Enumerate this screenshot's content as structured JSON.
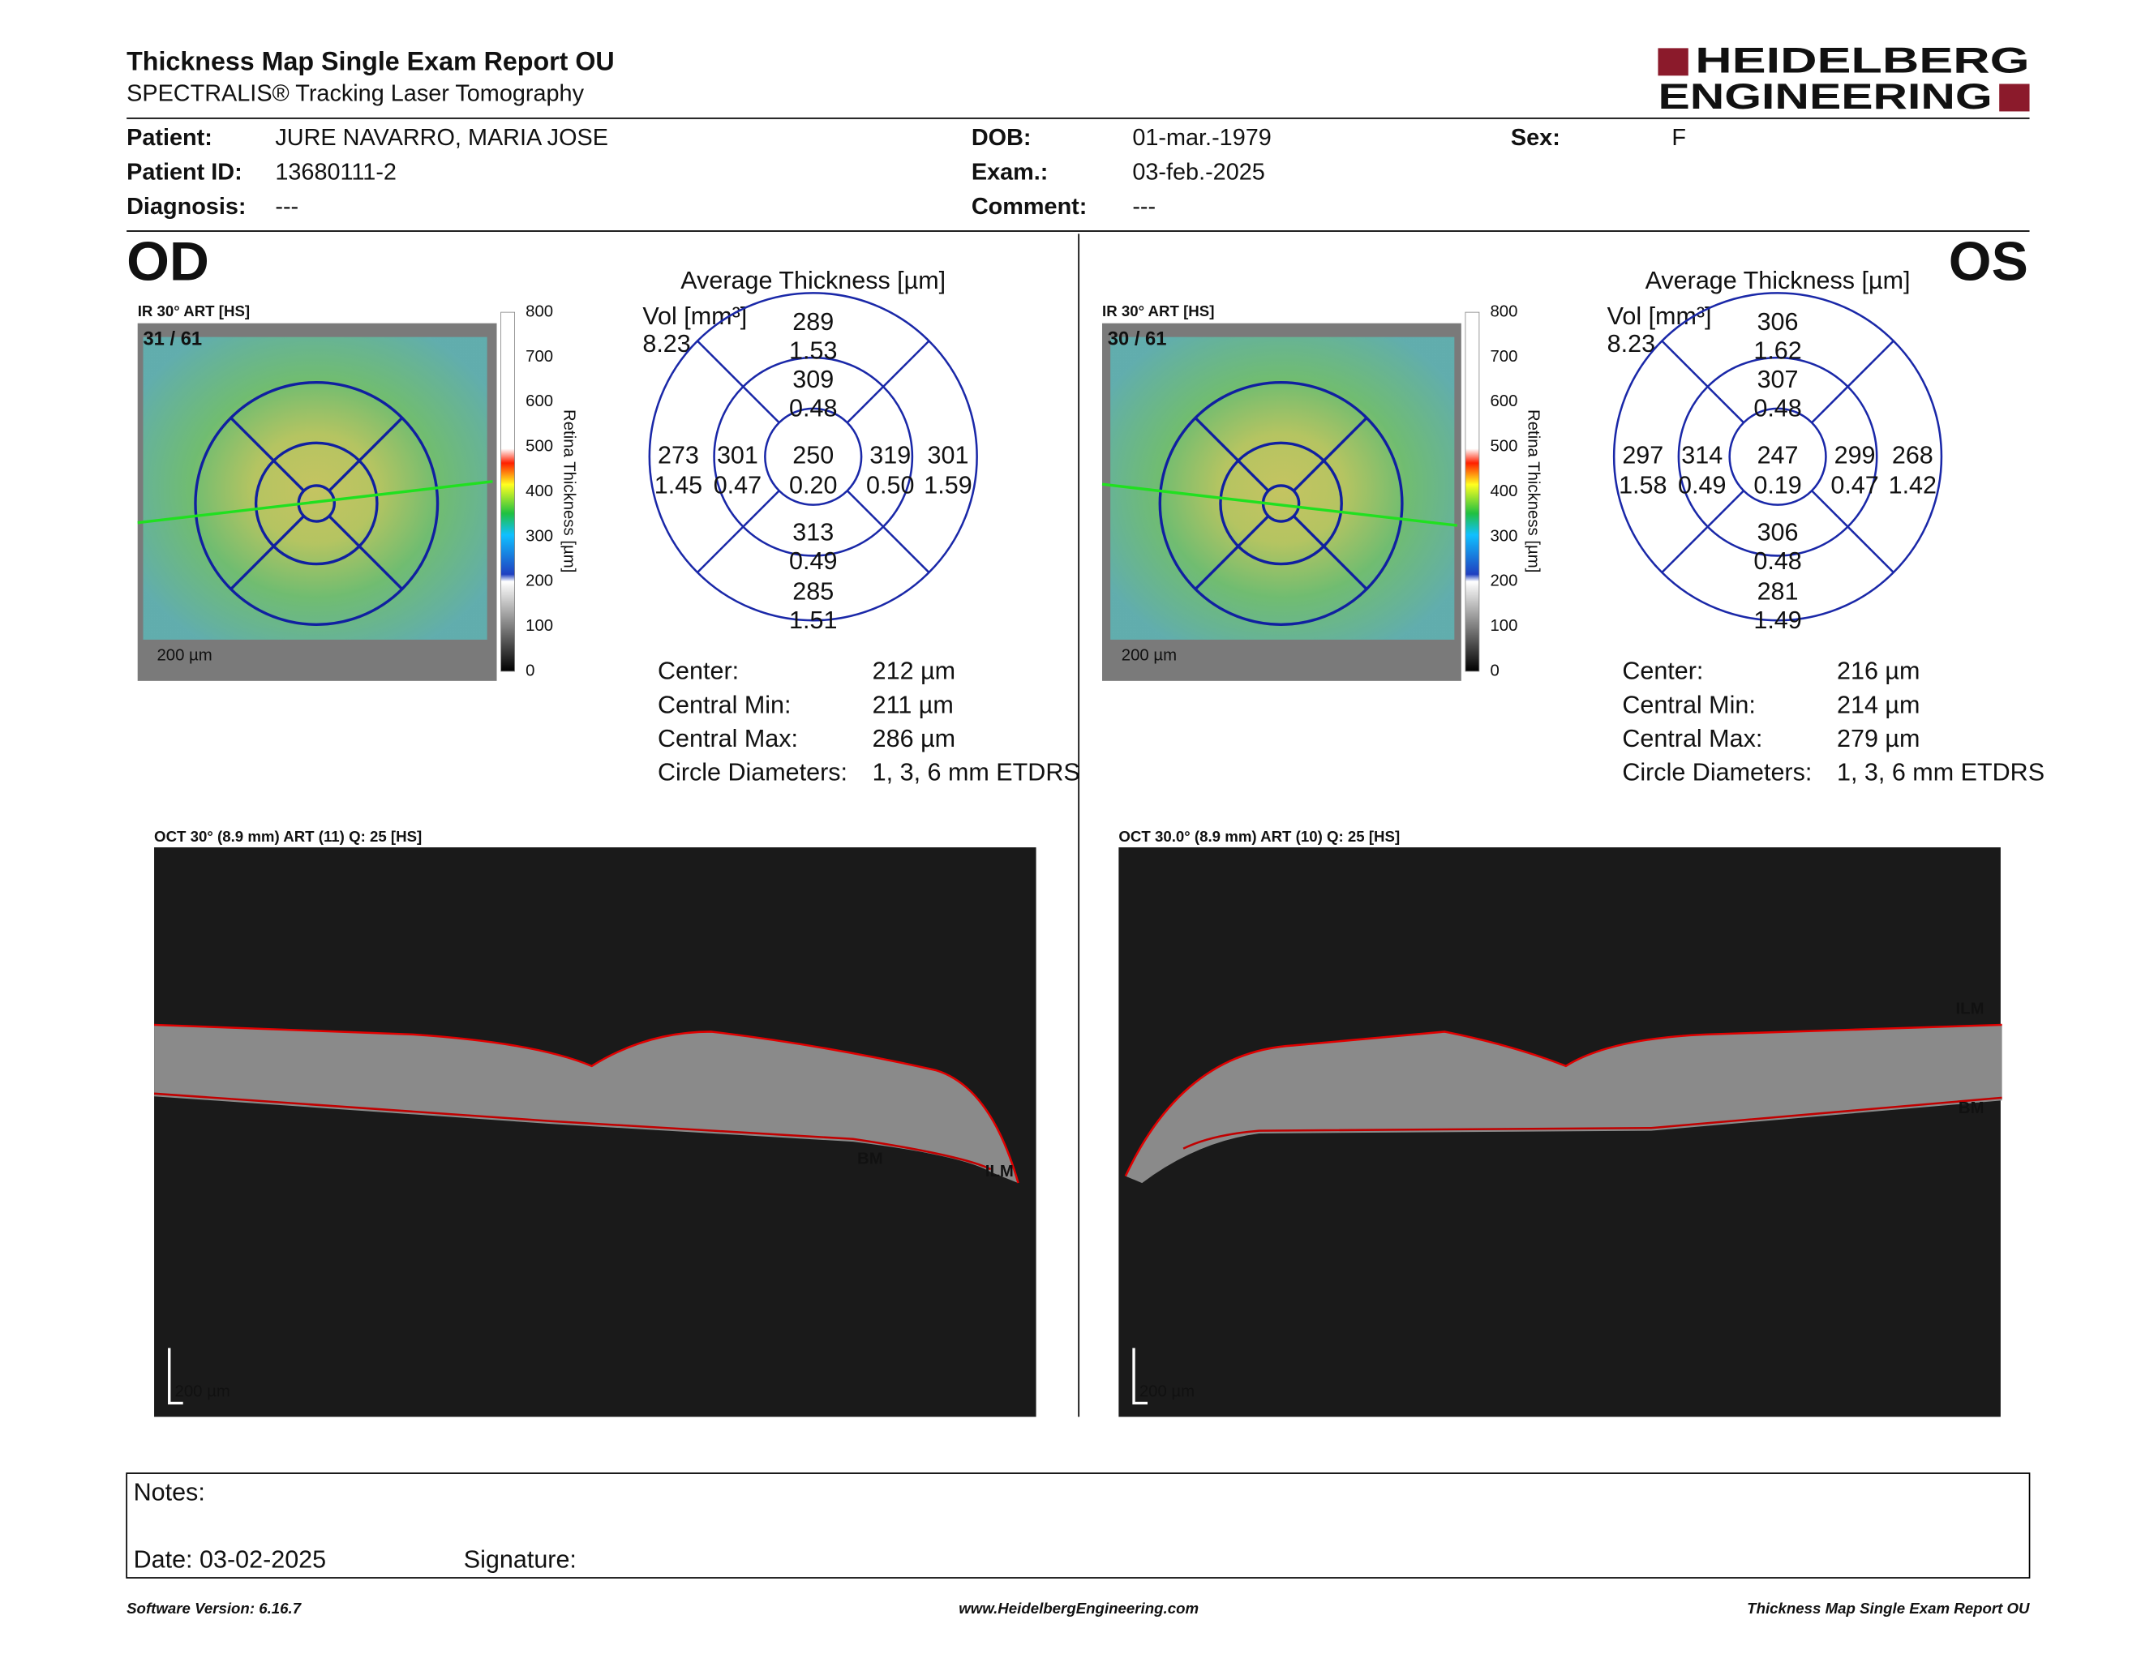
{
  "header": {
    "title": "Thickness Map Single Exam Report OU",
    "subtitle": "SPECTRALIS® Tracking Laser Tomography",
    "logo": [
      "HEIDELBERG",
      "ENGINEERING"
    ]
  },
  "patient": [
    [
      {
        "label": "Patient:",
        "value": "JURE NAVARRO, MARIA JOSE"
      },
      {
        "label": "DOB:",
        "value": "01-mar.-1979"
      },
      {
        "label": "Sex:",
        "value": "F"
      }
    ],
    [
      {
        "label": "Patient ID:",
        "value": "13680111-2"
      },
      {
        "label": "Exam.:",
        "value": "03-feb.-2025"
      }
    ],
    [
      {
        "label": "Diagnosis:",
        "value": "---"
      },
      {
        "label": "Comment:",
        "value": "---"
      }
    ]
  ],
  "eyes": [
    {
      "label": "OD",
      "ir_title": "IR 30° ART [HS]",
      "frame": "31 / 61",
      "scale_bar": "200 µm",
      "colorbar": {
        "title": "Retina  Thickness [µm]",
        "ticks": [
          "800",
          "700",
          "600",
          "500",
          "400",
          "300",
          "200",
          "100",
          "0"
        ]
      },
      "grid": {
        "title": "Average Thickness [µm]",
        "vol_label": "Vol [mm³]",
        "vol": "8.23",
        "sectors": {
          "outer_top": [
            "289",
            "1.53"
          ],
          "inner_top": [
            "309",
            "0.48"
          ],
          "outer_left": [
            "273",
            "1.45"
          ],
          "inner_left": [
            "301",
            "0.47"
          ],
          "center": [
            "250",
            "0.20"
          ],
          "inner_right": [
            "319",
            "0.50"
          ],
          "outer_right": [
            "301",
            "1.59"
          ],
          "inner_bottom": [
            "313",
            "0.49"
          ],
          "outer_bottom": [
            "285",
            "1.51"
          ]
        }
      },
      "stats": [
        [
          "Center:",
          "212 µm"
        ],
        [
          "Central Min:",
          "211 µm"
        ],
        [
          "Central Max:",
          "286 µm"
        ],
        [
          "Circle Diameters:",
          "1, 3, 6 mm ETDRS"
        ]
      ],
      "oct": {
        "title": "OCT 30° (8.9 mm) ART (11) Q: 25 [HS]",
        "ilm": "ILM",
        "bm": "BM",
        "scale_bar": "200 µm"
      }
    },
    {
      "label": "OS",
      "ir_title": "IR 30° ART [HS]",
      "frame": "30 / 61",
      "scale_bar": "200 µm",
      "colorbar": {
        "title": "Retina  Thickness [µm]",
        "ticks": [
          "800",
          "700",
          "600",
          "500",
          "400",
          "300",
          "200",
          "100",
          "0"
        ]
      },
      "grid": {
        "title": "Average Thickness [µm]",
        "vol_label": "Vol [mm³]",
        "vol": "8.23",
        "sectors": {
          "outer_top": [
            "306",
            "1.62"
          ],
          "inner_top": [
            "307",
            "0.48"
          ],
          "outer_left": [
            "297",
            "1.58"
          ],
          "inner_left": [
            "314",
            "0.49"
          ],
          "center": [
            "247",
            "0.19"
          ],
          "inner_right": [
            "299",
            "0.47"
          ],
          "outer_right": [
            "268",
            "1.42"
          ],
          "inner_bottom": [
            "306",
            "0.48"
          ],
          "outer_bottom": [
            "281",
            "1.49"
          ]
        }
      },
      "stats": [
        [
          "Center:",
          "216 µm"
        ],
        [
          "Central Min:",
          "214 µm"
        ],
        [
          "Central Max:",
          "279 µm"
        ],
        [
          "Circle Diameters:",
          "1, 3, 6 mm ETDRS"
        ]
      ],
      "oct": {
        "title": "OCT 30.0° (8.9 mm) ART (10) Q: 25 [HS]",
        "ilm": "ILM",
        "bm": "BM",
        "scale_bar": "200 µm"
      }
    }
  ],
  "notes": {
    "label": "Notes:",
    "date": "Date: 03-02-2025",
    "signature": "Signature:"
  },
  "footer": {
    "left": "Software Version: 6.16.7",
    "center": "www.HeidelbergEngineering.com",
    "right": "Thickness Map Single Exam Report OU"
  }
}
